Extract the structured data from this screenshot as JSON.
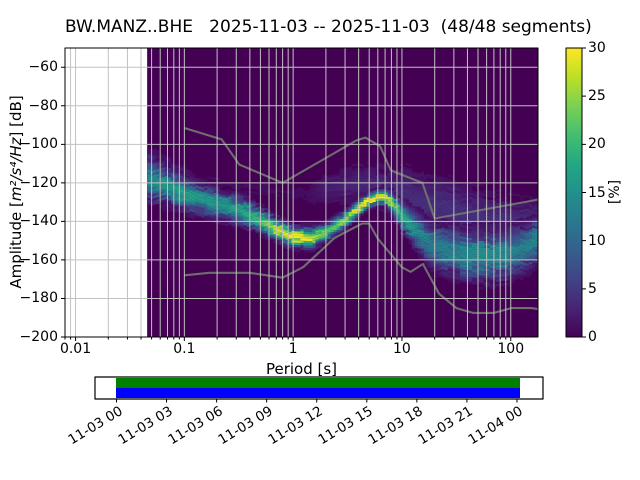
{
  "chart_data": {
    "type": "heatmap",
    "title": "BW.MANZ..BHE   2025-11-03 -- 2025-11-03  (48/48 segments)",
    "xlabel": "Period [s]",
    "ylabel_prefix": "Amplitude [",
    "ylabel_math": "m²/s⁴/Hz",
    "ylabel_suffix": "] [dB]",
    "xscale": "log",
    "xlim": [
      0.008,
      178
    ],
    "ylim": [
      -200,
      -50
    ],
    "grid": true,
    "grid_color": "#c2c2c2",
    "background_color": "#440154",
    "x_ticks": [
      {
        "v": 0.01,
        "label": "0.01"
      },
      {
        "v": 0.1,
        "label": "0.1"
      },
      {
        "v": 1,
        "label": "1"
      },
      {
        "v": 10,
        "label": "10"
      },
      {
        "v": 100,
        "label": "100"
      }
    ],
    "y_ticks": [
      {
        "v": -60,
        "label": "−60"
      },
      {
        "v": -80,
        "label": "−80"
      },
      {
        "v": -100,
        "label": "−100"
      },
      {
        "v": -120,
        "label": "−120"
      },
      {
        "v": -140,
        "label": "−140"
      },
      {
        "v": -160,
        "label": "−160"
      },
      {
        "v": -180,
        "label": "−180"
      },
      {
        "v": -200,
        "label": "−200"
      }
    ],
    "data_period_range": [
      0.0455,
      178
    ],
    "psd_band_comment": "columns: period[s], mode dB, spread sigma dB, peak probability %",
    "psd_band": [
      [
        0.0455,
        -117.0,
        6.5,
        14
      ],
      [
        0.07,
        -122.0,
        5.0,
        16
      ],
      [
        0.1,
        -126.0,
        4.5,
        17
      ],
      [
        0.2,
        -131.0,
        4.0,
        16
      ],
      [
        0.32,
        -134.0,
        4.0,
        18
      ],
      [
        0.5,
        -139.0,
        3.5,
        20
      ],
      [
        0.7,
        -144.0,
        3.0,
        28
      ],
      [
        1.0,
        -148.0,
        2.8,
        30
      ],
      [
        1.5,
        -148.5,
        2.8,
        27
      ],
      [
        2.0,
        -146.0,
        2.6,
        22
      ],
      [
        3.0,
        -139.0,
        2.4,
        25
      ],
      [
        4.0,
        -133.0,
        2.2,
        29
      ],
      [
        5.0,
        -129.0,
        2.0,
        30
      ],
      [
        6.0,
        -127.5,
        2.0,
        30
      ],
      [
        7.0,
        -127.5,
        2.2,
        29
      ],
      [
        8.0,
        -130.0,
        3.0,
        25
      ],
      [
        10.0,
        -137.0,
        4.0,
        19
      ],
      [
        13.0,
        -144.0,
        5.0,
        15
      ],
      [
        18.0,
        -151.0,
        6.0,
        13
      ],
      [
        25.0,
        -155.0,
        6.5,
        13
      ],
      [
        40.0,
        -157.5,
        7.0,
        14
      ],
      [
        60.0,
        -158.0,
        7.0,
        15
      ],
      [
        90.0,
        -157.0,
        7.0,
        14
      ],
      [
        130.0,
        -154.0,
        6.5,
        13
      ],
      [
        178.0,
        -150.0,
        6.0,
        14
      ]
    ],
    "outlier_band": [
      [
        0.0455,
        -110.0,
        4.5,
        6.0
      ],
      [
        0.08,
        -115.0,
        4.0,
        4.0
      ],
      [
        0.13,
        -119.0,
        3.5,
        1.0
      ],
      [
        1.3,
        -126.0,
        4.0,
        1.0
      ],
      [
        2.0,
        -123.0,
        5.0,
        2.5
      ],
      [
        4.0,
        -120.0,
        6.0,
        3.0
      ],
      [
        8.0,
        -125.0,
        8.0,
        3.5
      ],
      [
        15.0,
        -129.0,
        9.0,
        4.0
      ],
      [
        30.0,
        -135.0,
        9.0,
        4.0
      ],
      [
        60.0,
        -140.0,
        9.0,
        4.0
      ],
      [
        120.0,
        -142.0,
        8.0,
        4.0
      ],
      [
        178.0,
        -140.0,
        7.0,
        4.0
      ]
    ],
    "noise_models": {
      "color": "#6e6e6e",
      "nhnm": [
        [
          0.1,
          -91.5
        ],
        [
          0.22,
          -97.4
        ],
        [
          0.32,
          -110.5
        ],
        [
          0.8,
          -120.0
        ],
        [
          3.8,
          -98.0
        ],
        [
          4.6,
          -96.5
        ],
        [
          6.3,
          -101.0
        ],
        [
          7.9,
          -113.5
        ],
        [
          15.4,
          -120.0
        ],
        [
          20.0,
          -138.5
        ],
        [
          178.0,
          -128.7
        ]
      ],
      "nlnm": [
        [
          0.1,
          -168.0
        ],
        [
          0.17,
          -166.7
        ],
        [
          0.4,
          -166.7
        ],
        [
          0.8,
          -169.2
        ],
        [
          1.24,
          -163.7
        ],
        [
          2.4,
          -148.6
        ],
        [
          4.3,
          -141.1
        ],
        [
          5.0,
          -141.1
        ],
        [
          6.0,
          -149.0
        ],
        [
          10.0,
          -163.8
        ],
        [
          12.0,
          -166.2
        ],
        [
          15.6,
          -162.1
        ],
        [
          21.9,
          -177.5
        ],
        [
          31.6,
          -185.0
        ],
        [
          45.0,
          -187.5
        ],
        [
          70.0,
          -187.5
        ],
        [
          101.0,
          -185.0
        ],
        [
          154.0,
          -185.0
        ],
        [
          178.0,
          -185.5
        ]
      ]
    },
    "colorbar": {
      "label": "[%]",
      "range": [
        0,
        30
      ],
      "ticks": [
        {
          "v": 0,
          "label": "0"
        },
        {
          "v": 5,
          "label": "5"
        },
        {
          "v": 10,
          "label": "10"
        },
        {
          "v": 15,
          "label": "15"
        },
        {
          "v": 20,
          "label": "20"
        },
        {
          "v": 25,
          "label": "25"
        },
        {
          "v": 30,
          "label": "30"
        }
      ],
      "colormap": [
        "#440154",
        "#482475",
        "#414487",
        "#355f8d",
        "#2a788e",
        "#21918c",
        "#22a884",
        "#44bf70",
        "#7ad151",
        "#bddf26",
        "#fde725"
      ]
    },
    "timeline": {
      "labels": [
        "11-03 00",
        "11-03 03",
        "11-03 06",
        "11-03 09",
        "11-03 12",
        "11-03 15",
        "11-03 18",
        "11-03 21",
        "11-04 00"
      ],
      "coverage_color": "#008000",
      "extent_color": "#0000ff"
    }
  }
}
